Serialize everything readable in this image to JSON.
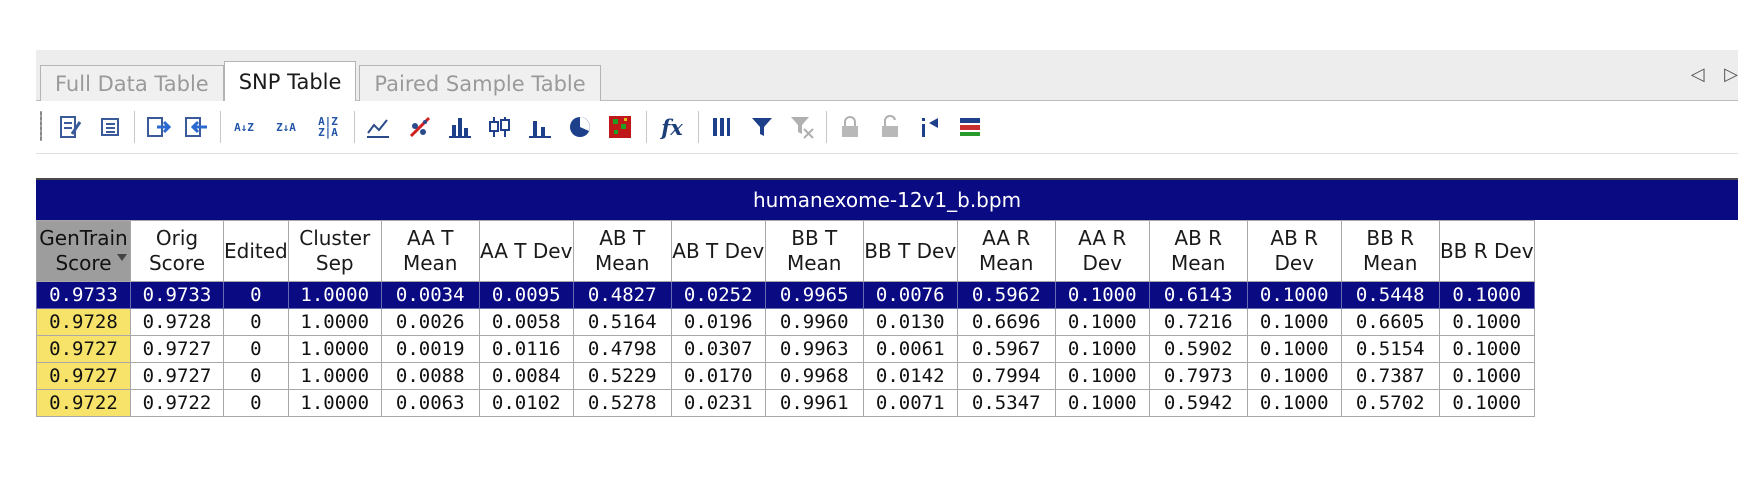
{
  "tabs": [
    {
      "label": "Full Data Table",
      "active": false
    },
    {
      "label": "SNP Table",
      "active": true
    },
    {
      "label": "Paired Sample Table",
      "active": false
    }
  ],
  "tab_scroll": {
    "left": "◁",
    "right": "▷"
  },
  "toolbar": {
    "sort_asc": "A↓Z",
    "sort_desc": "Z↓A",
    "sort_custom": "A|Z Z|A",
    "fx_label": "fx"
  },
  "grid": {
    "file_name": "humanexome-12v1_b.bpm",
    "columns": [
      {
        "label": "GenTrain Score"
      },
      {
        "label": "Orig Score"
      },
      {
        "label": "Edited"
      },
      {
        "label": "Cluster Sep"
      },
      {
        "label": "AA T Mean"
      },
      {
        "label": "AA T Dev"
      },
      {
        "label": "AB T Mean"
      },
      {
        "label": "AB T Dev"
      },
      {
        "label": "BB T Mean"
      },
      {
        "label": "BB T Dev"
      },
      {
        "label": "AA R Mean"
      },
      {
        "label": "AA R Dev"
      },
      {
        "label": "AB R Mean"
      },
      {
        "label": "AB R Dev"
      },
      {
        "label": "BB R Mean"
      },
      {
        "label": "BB R Dev"
      }
    ],
    "rows": [
      [
        "0.9733",
        "0.9733",
        "0",
        "1.0000",
        "0.0034",
        "0.0095",
        "0.4827",
        "0.0252",
        "0.9965",
        "0.0076",
        "0.5962",
        "0.1000",
        "0.6143",
        "0.1000",
        "0.5448",
        "0.1000"
      ],
      [
        "0.9728",
        "0.9728",
        "0",
        "1.0000",
        "0.0026",
        "0.0058",
        "0.5164",
        "0.0196",
        "0.9960",
        "0.0130",
        "0.6696",
        "0.1000",
        "0.7216",
        "0.1000",
        "0.6605",
        "0.1000"
      ],
      [
        "0.9727",
        "0.9727",
        "0",
        "1.0000",
        "0.0019",
        "0.0116",
        "0.4798",
        "0.0307",
        "0.9963",
        "0.0061",
        "0.5967",
        "0.1000",
        "0.5902",
        "0.1000",
        "0.5154",
        "0.1000"
      ],
      [
        "0.9727",
        "0.9727",
        "0",
        "1.0000",
        "0.0088",
        "0.0084",
        "0.5229",
        "0.0170",
        "0.9968",
        "0.0142",
        "0.7994",
        "0.1000",
        "0.7973",
        "0.1000",
        "0.7387",
        "0.1000"
      ],
      [
        "0.9722",
        "0.9722",
        "0",
        "1.0000",
        "0.0063",
        "0.0102",
        "0.5278",
        "0.0231",
        "0.9961",
        "0.0071",
        "0.5347",
        "0.1000",
        "0.5942",
        "0.1000",
        "0.5702",
        "0.1000"
      ]
    ],
    "selected_row": 0,
    "highlight_color": "#f7e36a",
    "header_color": "#0a0a82"
  }
}
